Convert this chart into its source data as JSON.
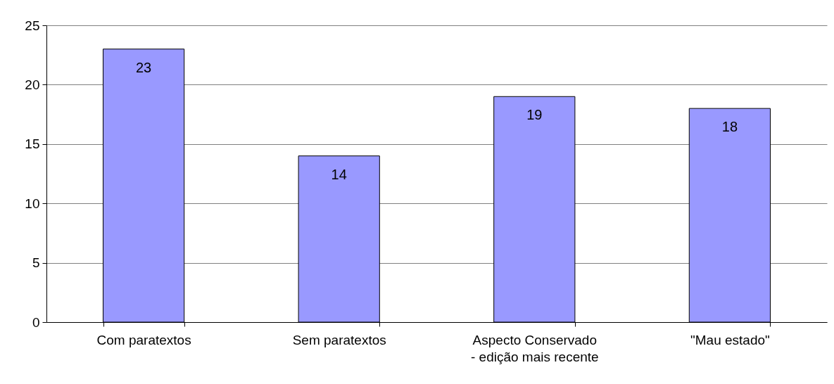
{
  "chart_data": {
    "type": "bar",
    "categories": [
      "Com paratextos",
      "Sem paratextos",
      "Aspecto Conservado\n- edição mais recente",
      "\"Mau estado\""
    ],
    "values": [
      23,
      14,
      19,
      18
    ],
    "color": "#9999ff",
    "ylim": [
      0,
      25
    ],
    "yticks": [
      0,
      5,
      10,
      15,
      20,
      25
    ],
    "grid": "y",
    "data_labels": true
  }
}
